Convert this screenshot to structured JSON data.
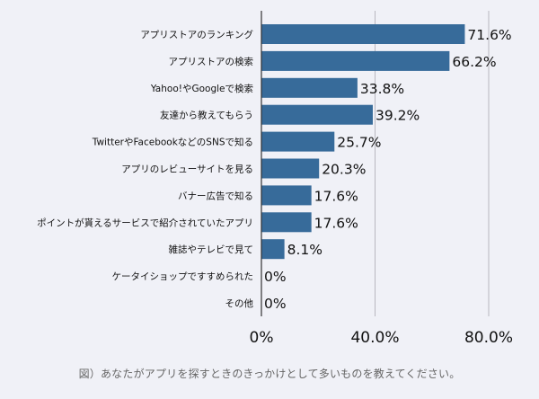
{
  "chart_data": {
    "type": "bar",
    "orientation": "horizontal",
    "categories": [
      "アプリストアのランキング",
      "アプリストアの検索",
      "Yahoo!やGoogleで検索",
      "友達から教えてもらう",
      "TwitterやFacebookなどのSNSで知る",
      "アプリのレビューサイトを見る",
      "バナー広告で知る",
      "ポイントが貰えるサービスで紹介されていたアプリ",
      "雑誌やテレビで見て",
      "ケータイショップですすめられた",
      "その他"
    ],
    "values": [
      71.6,
      66.2,
      33.8,
      39.2,
      25.7,
      20.3,
      17.6,
      17.6,
      8.1,
      0,
      0
    ],
    "value_labels": [
      "71.6%",
      "66.2%",
      "33.8%",
      "39.2%",
      "25.7%",
      "20.3%",
      "17.6%",
      "17.6%",
      "8.1%",
      "0%",
      "0%"
    ],
    "xlim": [
      0,
      80
    ],
    "ticks": [
      0,
      40,
      80
    ],
    "tick_labels": [
      "0%",
      "40.0%",
      "80.0%"
    ],
    "grid": true,
    "bar_color": "#376b9a"
  },
  "caption": "図）あなたがアプリを探すときのきっかけとして多いものを教えてください。"
}
